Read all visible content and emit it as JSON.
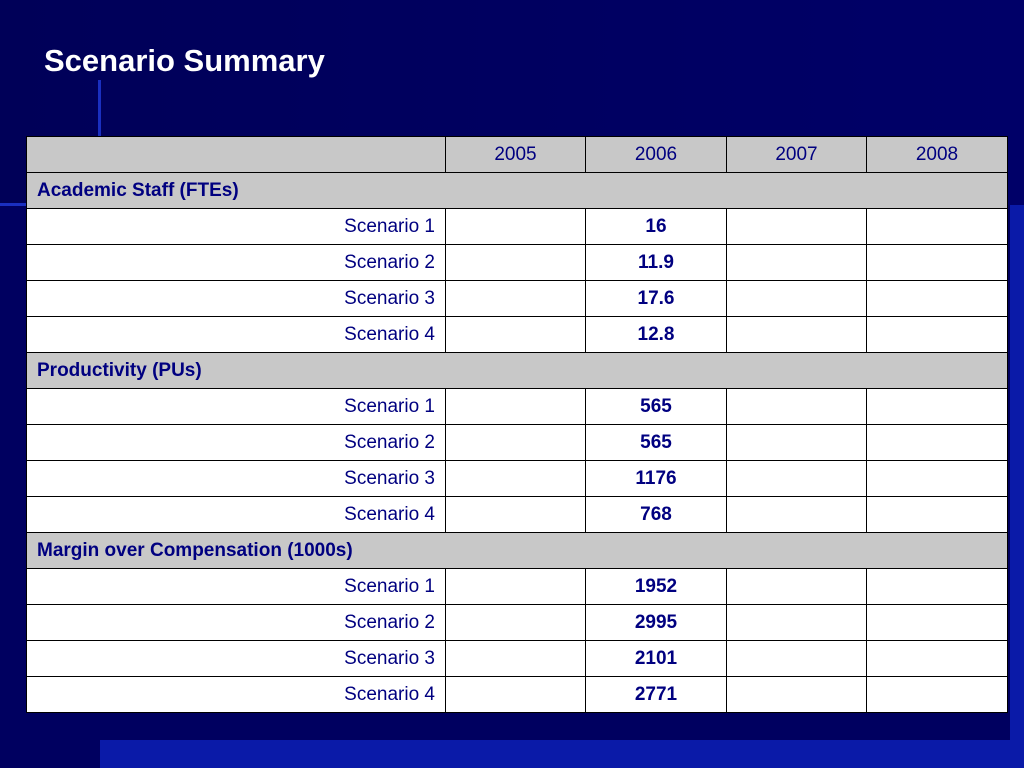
{
  "title": "Scenario Summary",
  "table": {
    "years": [
      "2005",
      "2006",
      "2007",
      "2008"
    ],
    "sections": [
      {
        "heading": "Academic Staff (FTEs)",
        "rows": [
          {
            "label": "Scenario 1",
            "values": [
              "",
              "16",
              "",
              ""
            ]
          },
          {
            "label": "Scenario 2",
            "values": [
              "",
              "11.9",
              "",
              ""
            ]
          },
          {
            "label": "Scenario 3",
            "values": [
              "",
              "17.6",
              "",
              ""
            ]
          },
          {
            "label": "Scenario 4",
            "values": [
              "",
              "12.8",
              "",
              ""
            ]
          }
        ]
      },
      {
        "heading": "Productivity (PUs)",
        "rows": [
          {
            "label": "Scenario 1",
            "values": [
              "",
              "565",
              "",
              ""
            ]
          },
          {
            "label": "Scenario 2",
            "values": [
              "",
              "565",
              "",
              ""
            ]
          },
          {
            "label": "Scenario 3",
            "values": [
              "",
              "1176",
              "",
              ""
            ]
          },
          {
            "label": "Scenario 4",
            "values": [
              "",
              "768",
              "",
              ""
            ]
          }
        ]
      },
      {
        "heading": "Margin over Compensation (1000s)",
        "rows": [
          {
            "label": "Scenario 1",
            "values": [
              "",
              "1952",
              "",
              ""
            ]
          },
          {
            "label": "Scenario 2",
            "values": [
              "",
              "2995",
              "",
              ""
            ]
          },
          {
            "label": "Scenario 3",
            "values": [
              "",
              "2101",
              "",
              ""
            ]
          },
          {
            "label": "Scenario 4",
            "values": [
              "",
              "2771",
              "",
              ""
            ]
          }
        ]
      }
    ]
  },
  "colors": {
    "background": "#000060",
    "header_fill": "#c8c8c8",
    "text": "#000080",
    "title": "#ffffff"
  }
}
